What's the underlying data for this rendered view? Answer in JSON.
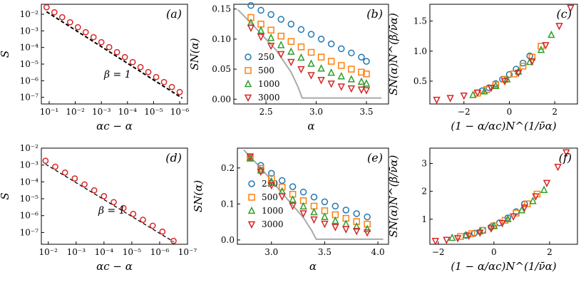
{
  "colors": {
    "panel_a_marker": "#d62728",
    "series_250": "#1f77b4",
    "series_500": "#ff7f0e",
    "series_1000": "#2ca02c",
    "series_3000": "#d62728",
    "theory_line": "#aaaaaa",
    "fit_line": "#000000"
  },
  "chart_data": [
    {
      "id": "a",
      "type": "scatter",
      "panel_label": "(a)",
      "xscale": "log",
      "xreversed": true,
      "yscale": "log",
      "xlabel": "αc − α",
      "ylabel": "S",
      "xlim_exp": [
        -0.7,
        -6.3
      ],
      "ylim_exp": [
        -7.4,
        -1.4
      ],
      "xticks_exp": [
        -1,
        -2,
        -3,
        -4,
        -5,
        -6
      ],
      "xtick_labels": [
        "10⁻¹",
        "10⁻²",
        "10⁻³",
        "10⁻⁴",
        "10⁻⁵",
        "10⁻⁶"
      ],
      "yticks_exp": [
        -7,
        -6,
        -5,
        -4,
        -3,
        -2
      ],
      "ytick_labels": [
        "10⁻⁷",
        "10⁻⁶",
        "10⁻⁵",
        "10⁻⁴",
        "10⁻³",
        "10⁻²"
      ],
      "annotation": "β = 1",
      "points": {
        "x_exp": [
          -0.9,
          -1.2,
          -1.5,
          -1.8,
          -2.1,
          -2.4,
          -2.7,
          -3.0,
          -3.3,
          -3.6,
          -3.9,
          -4.2,
          -4.5,
          -4.8,
          -5.1,
          -5.4,
          -5.7,
          -6.0
        ],
        "y_exp": [
          -1.58,
          -1.88,
          -2.18,
          -2.48,
          -2.78,
          -3.08,
          -3.38,
          -3.68,
          -3.98,
          -4.28,
          -4.58,
          -4.88,
          -5.18,
          -5.48,
          -5.78,
          -6.08,
          -6.38,
          -6.68
        ]
      },
      "fit": {
        "x_exp": [
          -0.9,
          -6.1
        ],
        "y_exp": [
          -1.85,
          -7.05
        ]
      }
    },
    {
      "id": "b",
      "type": "scatter",
      "panel_label": "(b)",
      "xlabel": "α",
      "ylabel": "SN(α)",
      "xlim": [
        2.18,
        3.72
      ],
      "ylim": [
        -0.008,
        0.158
      ],
      "xticks": [
        2.5,
        3.0,
        3.5
      ],
      "xtick_labels": [
        "2.5",
        "3.0",
        "3.5"
      ],
      "yticks": [
        0.0,
        0.05,
        0.1,
        0.15
      ],
      "ytick_labels": [
        "0.00",
        "0.05",
        "0.10",
        "0.15"
      ],
      "x": [
        2.35,
        2.45,
        2.55,
        2.65,
        2.75,
        2.85,
        2.95,
        3.05,
        3.15,
        3.25,
        3.35,
        3.45,
        3.5
      ],
      "series": [
        {
          "name": "250",
          "marker": "circle",
          "values": [
            0.156,
            0.148,
            0.141,
            0.133,
            0.125,
            0.116,
            0.108,
            0.1,
            0.092,
            0.084,
            0.077,
            0.07,
            0.063
          ]
        },
        {
          "name": "500",
          "marker": "square",
          "values": [
            0.136,
            0.125,
            0.115,
            0.105,
            0.096,
            0.087,
            0.078,
            0.07,
            0.063,
            0.056,
            0.05,
            0.045,
            0.042
          ]
        },
        {
          "name": "1000",
          "marker": "triangle-up",
          "values": [
            0.127,
            0.114,
            0.102,
            0.09,
            0.079,
            0.069,
            0.059,
            0.051,
            0.044,
            0.038,
            0.033,
            0.029,
            0.026
          ]
        },
        {
          "name": "3000",
          "marker": "triangle-down",
          "values": [
            0.119,
            0.104,
            0.089,
            0.075,
            0.062,
            0.05,
            0.04,
            0.032,
            0.026,
            0.021,
            0.018,
            0.016,
            0.015
          ]
        }
      ],
      "theory": {
        "x": [
          2.22,
          2.4,
          2.6,
          2.75,
          2.82,
          2.86,
          3.1,
          3.4,
          3.65
        ],
        "y": [
          0.149,
          0.118,
          0.082,
          0.045,
          0.02,
          0.002,
          0.002,
          0.002,
          0.002
        ]
      }
    },
    {
      "id": "c",
      "type": "scatter",
      "panel_label": "(c)",
      "xlabel": "(1 − α/αc)N^(1/ν̄α)",
      "ylabel": "SN(α)N^(β/ν̄α)",
      "xlim": [
        -3.5,
        3.0
      ],
      "ylim": [
        0.12,
        1.78
      ],
      "xticks": [
        -2,
        0,
        2
      ],
      "xtick_labels": [
        "−2",
        "0",
        "2"
      ],
      "yticks": [
        0.5,
        1.0,
        1.5
      ],
      "ytick_labels": [
        "0.5",
        "1.0",
        "1.5"
      ],
      "series": [
        {
          "name": "250",
          "marker": "circle",
          "x": [
            -1.2,
            -0.9,
            -0.6,
            -0.3,
            0.0,
            0.3,
            0.6,
            0.9
          ],
          "values": [
            0.34,
            0.39,
            0.46,
            0.53,
            0.61,
            0.7,
            0.8,
            0.92
          ]
        },
        {
          "name": "500",
          "marker": "square",
          "x": [
            -1.4,
            -1.0,
            -0.6,
            -0.2,
            0.2,
            0.6,
            1.0,
            1.4
          ],
          "values": [
            0.3,
            0.36,
            0.44,
            0.53,
            0.62,
            0.75,
            0.9,
            1.08
          ]
        },
        {
          "name": "1000",
          "marker": "triangle-up",
          "x": [
            -1.6,
            -1.1,
            -0.6,
            -0.1,
            0.4,
            0.9,
            1.4,
            1.85
          ],
          "values": [
            0.27,
            0.33,
            0.42,
            0.53,
            0.66,
            0.82,
            1.02,
            1.27
          ]
        },
        {
          "name": "3000",
          "marker": "triangle-down",
          "x": [
            -3.2,
            -2.6,
            -2.0,
            -1.4,
            -0.8,
            -0.2,
            0.4,
            1.0,
            1.6,
            2.2,
            2.7
          ],
          "values": [
            0.19,
            0.22,
            0.26,
            0.31,
            0.39,
            0.5,
            0.64,
            0.83,
            1.1,
            1.42,
            1.72
          ]
        }
      ]
    },
    {
      "id": "d",
      "type": "scatter",
      "panel_label": "(d)",
      "xscale": "log",
      "xreversed": true,
      "yscale": "log",
      "xlabel": "αc − α",
      "ylabel": "S",
      "xlim_exp": [
        -1.75,
        -7.0
      ],
      "ylim_exp": [
        -7.7,
        -2.0
      ],
      "xticks_exp": [
        -2,
        -3,
        -4,
        -5,
        -6,
        -7
      ],
      "xtick_labels": [
        "10⁻²",
        "10⁻³",
        "10⁻⁴",
        "10⁻⁵",
        "10⁻⁶",
        "10⁻⁷"
      ],
      "yticks_exp": [
        -7,
        -6,
        -5,
        -4,
        -3,
        -2
      ],
      "ytick_labels": [
        "10⁻⁷",
        "10⁻⁶",
        "10⁻⁵",
        "10⁻⁴",
        "10⁻³",
        "10⁻²"
      ],
      "annotation": "β = 1",
      "points": {
        "x_exp": [
          -1.9,
          -2.25,
          -2.6,
          -2.95,
          -3.3,
          -3.65,
          -4.0,
          -4.35,
          -4.7,
          -5.05,
          -5.4,
          -5.75,
          -6.1,
          -6.5
        ],
        "y_exp": [
          -2.75,
          -3.1,
          -3.45,
          -3.8,
          -4.15,
          -4.5,
          -4.85,
          -5.2,
          -5.55,
          -5.9,
          -6.25,
          -6.6,
          -6.95,
          -7.5
        ]
      },
      "fit": {
        "x_exp": [
          -1.9,
          -6.5
        ],
        "y_exp": [
          -2.95,
          -7.55
        ]
      }
    },
    {
      "id": "e",
      "type": "scatter",
      "panel_label": "(e)",
      "xlabel": "α",
      "ylabel": "SN(α)",
      "xlim": [
        2.68,
        4.1
      ],
      "ylim": [
        -0.012,
        0.255
      ],
      "xticks": [
        3.0,
        3.5,
        4.0
      ],
      "xtick_labels": [
        "3.0",
        "3.5",
        "4.0"
      ],
      "yticks": [
        0.0,
        0.1,
        0.2
      ],
      "ytick_labels": [
        "0.0",
        "0.1",
        "0.2"
      ],
      "x": [
        2.8,
        2.9,
        3.0,
        3.1,
        3.2,
        3.3,
        3.4,
        3.5,
        3.6,
        3.7,
        3.8,
        3.9
      ],
      "series": [
        {
          "name": "250",
          "marker": "circle",
          "values": [
            0.23,
            0.207,
            0.185,
            0.165,
            0.148,
            0.133,
            0.119,
            0.106,
            0.094,
            0.083,
            0.073,
            0.064
          ]
        },
        {
          "name": "500",
          "marker": "square",
          "values": [
            0.228,
            0.199,
            0.171,
            0.147,
            0.127,
            0.109,
            0.094,
            0.081,
            0.07,
            0.06,
            0.051,
            0.044
          ]
        },
        {
          "name": "1000",
          "marker": "triangle-up",
          "values": [
            0.226,
            0.193,
            0.162,
            0.135,
            0.112,
            0.093,
            0.077,
            0.064,
            0.053,
            0.044,
            0.037,
            0.03
          ]
        },
        {
          "name": "3000",
          "marker": "triangle-down",
          "values": [
            0.232,
            0.19,
            0.152,
            0.121,
            0.095,
            0.074,
            0.057,
            0.045,
            0.036,
            0.03,
            0.025,
            0.021
          ]
        }
      ],
      "theory": {
        "x": [
          2.74,
          2.9,
          3.1,
          3.3,
          3.38,
          3.42,
          3.7,
          4.05
        ],
        "y": [
          0.25,
          0.2,
          0.13,
          0.062,
          0.025,
          0.002,
          0.002,
          0.002
        ]
      }
    },
    {
      "id": "f",
      "type": "scatter",
      "panel_label": "(f)",
      "xlabel": "(1 − α/αc)N^(1/ν̄α)",
      "ylabel": "SN(α)N^(β/ν̄α)",
      "xlim": [
        -2.3,
        3.0
      ],
      "ylim": [
        0.1,
        3.55
      ],
      "xticks": [
        -2,
        0,
        2
      ],
      "xtick_labels": [
        "−2",
        "0",
        "2"
      ],
      "yticks": [
        1,
        2,
        3
      ],
      "ytick_labels": [
        "1",
        "2",
        "3"
      ],
      "series": [
        {
          "name": "250",
          "marker": "circle",
          "x": [
            -1.0,
            -0.7,
            -0.4,
            -0.1,
            0.2,
            0.5,
            0.8,
            1.1
          ],
          "values": [
            0.42,
            0.5,
            0.6,
            0.72,
            0.87,
            1.05,
            1.27,
            1.55
          ]
        },
        {
          "name": "500",
          "marker": "square",
          "x": [
            -1.2,
            -0.8,
            -0.4,
            0.0,
            0.4,
            0.8,
            1.2,
            1.55
          ],
          "values": [
            0.38,
            0.48,
            0.6,
            0.76,
            0.96,
            1.22,
            1.55,
            1.9
          ]
        },
        {
          "name": "1000",
          "marker": "triangle-up",
          "x": [
            -1.5,
            -1.0,
            -0.5,
            0.0,
            0.5,
            1.0,
            1.4,
            1.8
          ],
          "values": [
            0.33,
            0.43,
            0.57,
            0.76,
            1.0,
            1.32,
            1.65,
            2.05
          ]
        },
        {
          "name": "3000",
          "marker": "triangle-down",
          "x": [
            -2.1,
            -1.7,
            -1.3,
            -0.9,
            -0.5,
            -0.1,
            0.3,
            0.7,
            1.1,
            1.5,
            1.9,
            2.3,
            2.6
          ],
          "values": [
            0.22,
            0.26,
            0.32,
            0.41,
            0.52,
            0.67,
            0.86,
            1.1,
            1.42,
            1.82,
            2.3,
            2.88,
            3.4
          ]
        }
      ]
    }
  ]
}
